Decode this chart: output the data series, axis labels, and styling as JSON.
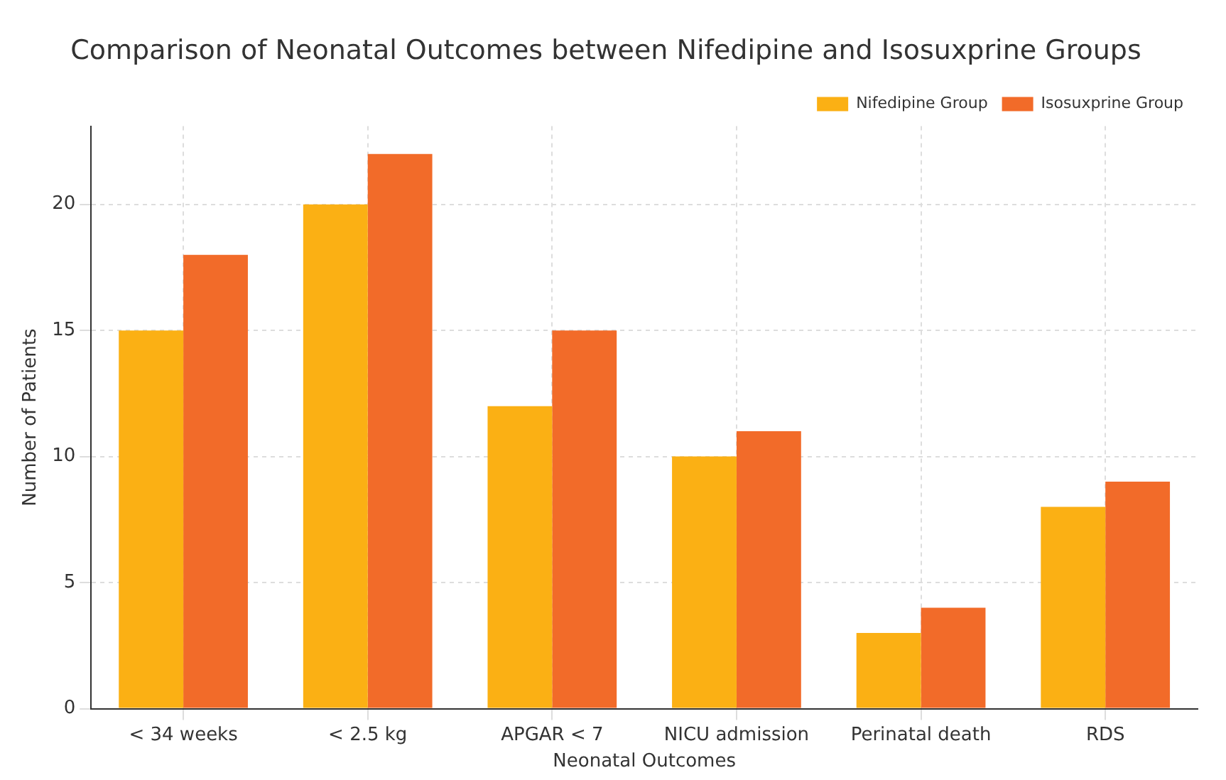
{
  "chart_data": {
    "type": "bar",
    "title": "Comparison of Neonatal Outcomes between Nifedipine and Isosuxprine Groups",
    "xlabel": "Neonatal Outcomes",
    "ylabel": "Number of Patients",
    "categories": [
      "< 34 weeks",
      "< 2.5 kg",
      "APGAR < 7",
      "NICU admission",
      "Perinatal death",
      "RDS"
    ],
    "series": [
      {
        "name": "Nifedipine Group",
        "color": "#fbb014",
        "values": [
          15,
          20,
          12,
          10,
          3,
          8
        ]
      },
      {
        "name": "Isosuxprine Group",
        "color": "#f26b29",
        "values": [
          18,
          22,
          15,
          11,
          4,
          9
        ]
      }
    ],
    "ylim": [
      0,
      23.1
    ],
    "yticks": [
      0,
      5,
      10,
      15,
      20
    ],
    "grid": true,
    "legend": "top right"
  }
}
